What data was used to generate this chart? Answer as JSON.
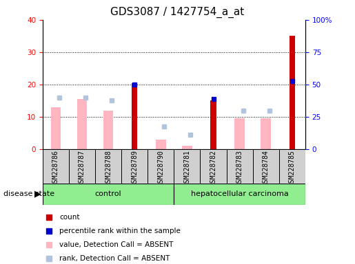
{
  "title": "GDS3087 / 1427754_a_at",
  "samples": [
    "GSM228786",
    "GSM228787",
    "GSM228788",
    "GSM228789",
    "GSM228790",
    "GSM228781",
    "GSM228782",
    "GSM228783",
    "GSM228784",
    "GSM228785"
  ],
  "groups": [
    "control",
    "control",
    "control",
    "control",
    "control",
    "hepatocellular carcinoma",
    "hepatocellular carcinoma",
    "hepatocellular carcinoma",
    "hepatocellular carcinoma",
    "hepatocellular carcinoma"
  ],
  "count_values": [
    0,
    0,
    0,
    20.5,
    0,
    0,
    15,
    0,
    0,
    35
  ],
  "percentile_values": [
    0,
    0,
    0,
    20,
    0,
    0,
    15.5,
    0,
    0,
    21
  ],
  "value_absent": [
    13,
    15.5,
    12,
    0,
    3,
    1,
    0,
    9.5,
    9.5,
    0
  ],
  "rank_absent": [
    16,
    16,
    15,
    0,
    7,
    4.5,
    0,
    12,
    12,
    0
  ],
  "ylim_left": [
    0,
    40
  ],
  "ylim_right": [
    0,
    100
  ],
  "yticks_left": [
    0,
    10,
    20,
    30,
    40
  ],
  "yticks_right": [
    0,
    25,
    50,
    75,
    100
  ],
  "ytick_labels_left": [
    "0",
    "10",
    "20",
    "30",
    "40"
  ],
  "ytick_labels_right": [
    "0",
    "25",
    "50",
    "75",
    "100%"
  ],
  "color_count": "#CC0000",
  "color_percentile": "#0000CC",
  "color_value_absent": "#FFB6C1",
  "color_rank_absent": "#B0C4DE",
  "bg_color": "#FFFFFF",
  "sample_label_bg": "#D3D3D3",
  "group_color": "#90EE90",
  "legend_items": [
    "count",
    "percentile rank within the sample",
    "value, Detection Call = ABSENT",
    "rank, Detection Call = ABSENT"
  ],
  "title_fontsize": 11,
  "tick_fontsize": 7.5,
  "sample_fontsize": 7,
  "legend_fontsize": 7.5
}
